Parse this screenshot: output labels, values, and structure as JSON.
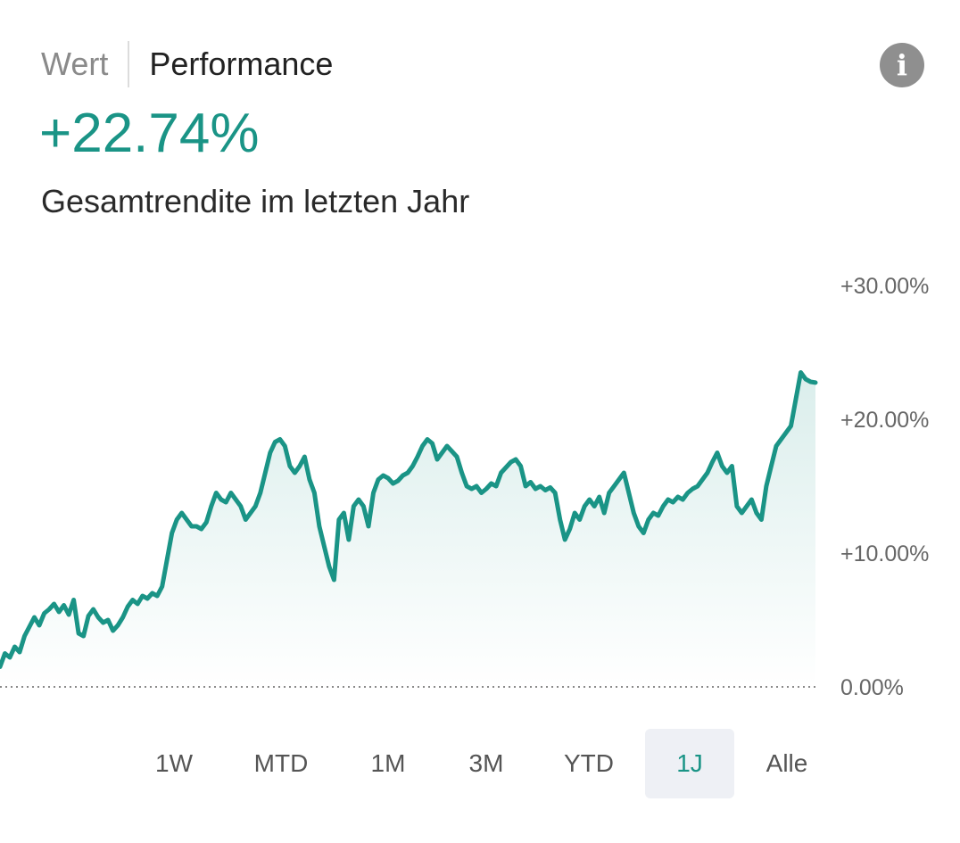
{
  "tabs": {
    "wert": "Wert",
    "performance": "Performance"
  },
  "headline": {
    "value": "+22.74%",
    "subtitle": "Gesamtrendite im letzten Jahr"
  },
  "colors": {
    "accent": "#1a9486"
  },
  "chart_data": {
    "type": "area",
    "title": "",
    "xlabel": "",
    "ylabel": "",
    "ylim": [
      -2,
      33
    ],
    "y_ticks": [
      "+30.00%",
      "+20.00%",
      "+10.00%",
      "0.00%"
    ],
    "y_tick_values": [
      30,
      20,
      10,
      0
    ],
    "baseline": 0,
    "baseline_style": "dotted",
    "grid": false,
    "series": [
      {
        "values": [
          1.5,
          2.5,
          2.2,
          3.0,
          2.6,
          3.8,
          4.5,
          5.2,
          4.6,
          5.5,
          5.8,
          6.2,
          5.6,
          6.1,
          5.4,
          6.5,
          4.0,
          3.8,
          5.3,
          5.8,
          5.2,
          4.8,
          5.0,
          4.2,
          4.6,
          5.2,
          6.0,
          6.5,
          6.2,
          6.8,
          6.6,
          7.0,
          6.8,
          7.5,
          9.5,
          11.5,
          12.5,
          13.0,
          12.5,
          12.0,
          12.0,
          11.8,
          12.3,
          13.5,
          14.5,
          14.0,
          13.8,
          14.5,
          14.0,
          13.5,
          12.5,
          13.0,
          13.5,
          14.5,
          16.0,
          17.5,
          18.3,
          18.5,
          18.0,
          16.5,
          16.0,
          16.5,
          17.2,
          15.5,
          14.5,
          12.0,
          10.5,
          9.0,
          8.0,
          12.5,
          13.0,
          11.0,
          13.5,
          14.0,
          13.5,
          12.0,
          14.5,
          15.5,
          15.8,
          15.6,
          15.2,
          15.4,
          15.8,
          16.0,
          16.5,
          17.2,
          18.0,
          18.5,
          18.2,
          17.0,
          17.5,
          18.0,
          17.6,
          17.2,
          16.0,
          15.0,
          14.8,
          15.0,
          14.5,
          14.8,
          15.2,
          15.0,
          16.0,
          16.4,
          16.8,
          17.0,
          16.5,
          15.0,
          15.3,
          14.8,
          15.0,
          14.7,
          14.9,
          14.5,
          12.5,
          11.0,
          11.8,
          13.0,
          12.5,
          13.5,
          14.0,
          13.5,
          14.2,
          13.0,
          14.5,
          15.0,
          15.5,
          16.0,
          14.5,
          13.0,
          12.0,
          11.5,
          12.5,
          13.0,
          12.8,
          13.5,
          14.0,
          13.8,
          14.2,
          14.0,
          14.5,
          14.8,
          15.0,
          15.5,
          16.0,
          16.8,
          17.5,
          16.5,
          16.0,
          16.5,
          13.5,
          13.0,
          13.5,
          14.0,
          13.0,
          12.5,
          15.0,
          16.5,
          18.0,
          18.5,
          19.0,
          19.5,
          21.5,
          23.5,
          23.0,
          22.8,
          22.74
        ]
      }
    ]
  },
  "ranges": [
    "1W",
    "MTD",
    "1M",
    "3M",
    "YTD",
    "1J",
    "Alle"
  ],
  "active_range": "1J"
}
